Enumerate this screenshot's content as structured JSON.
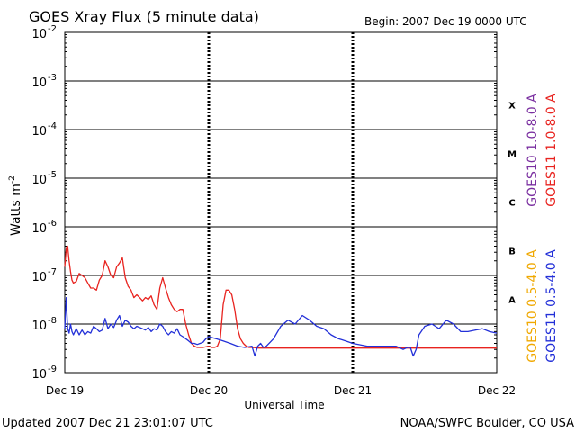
{
  "chart_data": {
    "type": "line",
    "title": "GOES Xray Flux (5 minute data)",
    "begin_label": "Begin:  2007 Dec 19 0000 UTC",
    "ylabel": "Watts m",
    "ylabel_sup": "-2",
    "xlabel": "Universal Time",
    "y_scale": "log",
    "ylim": [
      1e-09,
      0.01
    ],
    "y_ticks": [
      {
        "value": 0.01,
        "base": "10",
        "exp": "-2"
      },
      {
        "value": 0.001,
        "base": "10",
        "exp": "-3"
      },
      {
        "value": 0.0001,
        "base": "10",
        "exp": "-4"
      },
      {
        "value": 1e-05,
        "base": "10",
        "exp": "-5"
      },
      {
        "value": 1e-06,
        "base": "10",
        "exp": "-6"
      },
      {
        "value": 1e-07,
        "base": "10",
        "exp": "-7"
      },
      {
        "value": 1e-08,
        "base": "10",
        "exp": "-8"
      },
      {
        "value": 1e-09,
        "base": "10",
        "exp": "-9"
      }
    ],
    "xlim": [
      0,
      3
    ],
    "x_ticks": [
      {
        "value": 0,
        "label": "Dec 19"
      },
      {
        "value": 1,
        "label": "Dec 20"
      },
      {
        "value": 2,
        "label": "Dec 21"
      },
      {
        "value": 3,
        "label": "Dec 22"
      }
    ],
    "flare_classes": [
      {
        "label": "X",
        "value": 0.00032
      },
      {
        "label": "M",
        "value": 3.2e-05
      },
      {
        "label": "C",
        "value": 3.2e-06
      },
      {
        "label": "B",
        "value": 3.2e-07
      },
      {
        "label": "A",
        "value": 3.2e-08
      }
    ],
    "grid": true,
    "legend": [
      {
        "name": "GOES10 1.0-8.0 A",
        "color": "#7a2fa0",
        "position": "right-outer-upper"
      },
      {
        "name": "GOES11 1.0-8.0 A",
        "color": "#e8231f",
        "position": "right-inner-upper"
      },
      {
        "name": "GOES10 0.5-4.0 A",
        "color": "#f0a800",
        "position": "right-outer-lower"
      },
      {
        "name": "GOES11 0.5-4.0 A",
        "color": "#2330d8",
        "position": "right-inner-lower"
      }
    ],
    "series": [
      {
        "name": "GOES11 1.0-8.0 A",
        "color": "#e8231f",
        "x": [
          0.0,
          0.01,
          0.02,
          0.03,
          0.04,
          0.05,
          0.06,
          0.08,
          0.1,
          0.12,
          0.14,
          0.16,
          0.18,
          0.2,
          0.22,
          0.24,
          0.26,
          0.28,
          0.3,
          0.32,
          0.34,
          0.36,
          0.38,
          0.4,
          0.42,
          0.44,
          0.46,
          0.48,
          0.5,
          0.52,
          0.54,
          0.56,
          0.58,
          0.6,
          0.62,
          0.64,
          0.66,
          0.68,
          0.7,
          0.72,
          0.74,
          0.76,
          0.78,
          0.8,
          0.82,
          0.84,
          0.86,
          0.88,
          0.9,
          0.92,
          0.94,
          0.96,
          0.98,
          1.0,
          1.02,
          1.04,
          1.06,
          1.08,
          1.1,
          1.12,
          1.14,
          1.16,
          1.18,
          1.2,
          1.22,
          1.24,
          1.26,
          1.28,
          1.3,
          1.35,
          1.4,
          1.5,
          1.6,
          1.8,
          2.0,
          2.2,
          2.4,
          2.6,
          2.8,
          3.0
        ],
        "y": [
          1.5e-07,
          3.5e-07,
          4e-07,
          2e-07,
          1.2e-07,
          8e-08,
          7e-08,
          7.5e-08,
          1.1e-07,
          1e-07,
          9e-08,
          7e-08,
          5.5e-08,
          5.5e-08,
          5e-08,
          8e-08,
          1e-07,
          2e-07,
          1.5e-07,
          1e-07,
          9e-08,
          1.5e-07,
          1.8e-07,
          2.3e-07,
          9e-08,
          6e-08,
          5e-08,
          3.5e-08,
          4e-08,
          3.5e-08,
          3e-08,
          3.5e-08,
          3.2e-08,
          3.8e-08,
          2.5e-08,
          2e-08,
          5.5e-08,
          9e-08,
          5.5e-08,
          3.5e-08,
          2.5e-08,
          2e-08,
          1.8e-08,
          2e-08,
          2e-08,
          1e-08,
          6e-09,
          4e-09,
          3.5e-09,
          3.3e-09,
          3.3e-09,
          3.3e-09,
          3.4e-09,
          3.5e-09,
          3.3e-09,
          3.3e-09,
          3.5e-09,
          5e-09,
          2.5e-08,
          5e-08,
          5e-08,
          4e-08,
          2e-08,
          8e-09,
          5e-09,
          4e-09,
          3.5e-09,
          3.3e-09,
          3.3e-09,
          3.2e-09,
          3.2e-09,
          3.2e-09,
          3.2e-09,
          3.2e-09,
          3.2e-09,
          3.2e-09,
          3.2e-09,
          3.2e-09,
          3.2e-09,
          3.2e-09
        ]
      },
      {
        "name": "GOES11 0.5-4.0 A",
        "color": "#2330d8",
        "x": [
          0.0,
          0.01,
          0.02,
          0.03,
          0.04,
          0.05,
          0.06,
          0.08,
          0.1,
          0.12,
          0.14,
          0.16,
          0.18,
          0.2,
          0.22,
          0.24,
          0.26,
          0.28,
          0.3,
          0.32,
          0.34,
          0.36,
          0.38,
          0.4,
          0.42,
          0.44,
          0.46,
          0.48,
          0.5,
          0.52,
          0.54,
          0.56,
          0.58,
          0.6,
          0.62,
          0.64,
          0.66,
          0.68,
          0.7,
          0.72,
          0.74,
          0.76,
          0.78,
          0.8,
          0.82,
          0.84,
          0.86,
          0.88,
          0.9,
          0.92,
          0.94,
          0.96,
          0.98,
          1.0,
          1.05,
          1.1,
          1.15,
          1.2,
          1.25,
          1.3,
          1.32,
          1.34,
          1.36,
          1.38,
          1.4,
          1.45,
          1.5,
          1.55,
          1.6,
          1.65,
          1.7,
          1.75,
          1.8,
          1.85,
          1.9,
          1.95,
          2.0,
          2.1,
          2.2,
          2.25,
          2.3,
          2.35,
          2.38,
          2.4,
          2.42,
          2.44,
          2.46,
          2.5,
          2.55,
          2.6,
          2.65,
          2.7,
          2.75,
          2.8,
          2.85,
          2.9,
          2.95,
          3.0
        ],
        "y": [
          8e-09,
          3.5e-08,
          8e-09,
          6.5e-09,
          1e-08,
          7e-09,
          6e-09,
          8e-09,
          6e-09,
          7.5e-09,
          6e-09,
          7e-09,
          6.5e-09,
          9e-09,
          8e-09,
          7e-09,
          7.5e-09,
          1.3e-08,
          8e-09,
          1e-08,
          8.5e-09,
          1.2e-08,
          1.5e-08,
          9e-09,
          1.2e-08,
          1.1e-08,
          9e-09,
          8e-09,
          9e-09,
          8.5e-09,
          8e-09,
          7.5e-09,
          8.5e-09,
          7e-09,
          8e-09,
          7.5e-09,
          1e-08,
          9e-09,
          7e-09,
          6e-09,
          7e-09,
          6.5e-09,
          8e-09,
          6e-09,
          5.5e-09,
          5e-09,
          4.5e-09,
          4e-09,
          4e-09,
          3.8e-09,
          4e-09,
          4.2e-09,
          5e-09,
          5.5e-09,
          5e-09,
          4.5e-09,
          4e-09,
          3.5e-09,
          3.3e-09,
          3.5e-09,
          2.2e-09,
          3.5e-09,
          4e-09,
          3.3e-09,
          3.5e-09,
          5e-09,
          9e-09,
          1.2e-08,
          1e-08,
          1.5e-08,
          1.2e-08,
          9e-09,
          8e-09,
          6e-09,
          5e-09,
          4.5e-09,
          4e-09,
          3.5e-09,
          3.5e-09,
          3.5e-09,
          3.5e-09,
          3e-09,
          3.3e-09,
          3.3e-09,
          2.2e-09,
          3e-09,
          6e-09,
          9e-09,
          1e-08,
          8e-09,
          1.2e-08,
          1e-08,
          7e-09,
          7e-09,
          7.5e-09,
          8e-09,
          7e-09,
          6.5e-09
        ]
      }
    ]
  },
  "footer": {
    "updated": "Updated 2007 Dec 21 23:01:07 UTC",
    "credit": "NOAA/SWPC Boulder, CO USA"
  }
}
